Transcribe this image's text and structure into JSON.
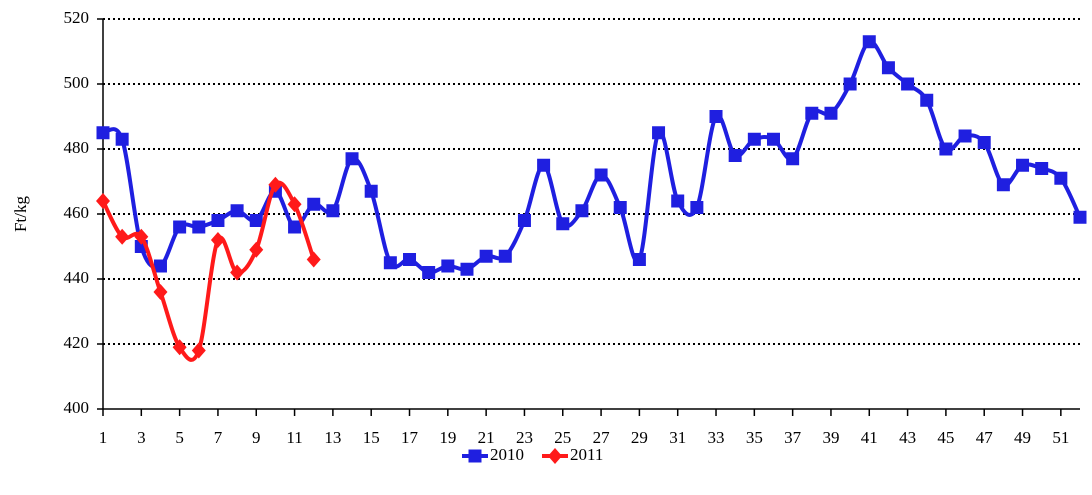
{
  "chart_data": {
    "type": "line",
    "y_label": "Ft/kg",
    "x": [
      1,
      2,
      3,
      4,
      5,
      6,
      7,
      8,
      9,
      10,
      11,
      12,
      13,
      14,
      15,
      16,
      17,
      18,
      19,
      20,
      21,
      22,
      23,
      24,
      25,
      26,
      27,
      28,
      29,
      30,
      31,
      32,
      33,
      34,
      35,
      36,
      37,
      38,
      39,
      40,
      41,
      42,
      43,
      44,
      45,
      46,
      47,
      48,
      49,
      50,
      51,
      52
    ],
    "series": [
      {
        "name": "2010",
        "color": "#1f1fe0",
        "marker": "square",
        "values": [
          485,
          483,
          450,
          444,
          456,
          456,
          458,
          461,
          458,
          467,
          456,
          463,
          461,
          477,
          467,
          445,
          446,
          442,
          444,
          443,
          447,
          447,
          458,
          475,
          457,
          461,
          472,
          462,
          446,
          485,
          464,
          462,
          490,
          478,
          483,
          483,
          477,
          491,
          491,
          500,
          513,
          505,
          500,
          495,
          480,
          484,
          482,
          469,
          475,
          474,
          471,
          459
        ]
      },
      {
        "name": "2011",
        "color": "#ff1a1a",
        "marker": "diamond",
        "values": [
          464,
          453,
          453,
          436,
          419,
          418,
          452,
          442,
          449,
          469,
          463,
          446,
          null,
          null,
          null,
          null,
          null,
          null,
          null,
          null,
          null,
          null,
          null,
          null,
          null,
          null,
          null,
          null,
          null,
          null,
          null,
          null,
          null,
          null,
          null,
          null,
          null,
          null,
          null,
          null,
          null,
          null,
          null,
          null,
          null,
          null,
          null,
          null,
          null,
          null,
          null,
          null
        ]
      }
    ],
    "xlim": [
      1,
      52
    ],
    "xticks": [
      1,
      3,
      5,
      7,
      9,
      11,
      13,
      15,
      17,
      19,
      21,
      23,
      25,
      27,
      29,
      31,
      33,
      35,
      37,
      39,
      41,
      43,
      45,
      47,
      49,
      51
    ],
    "ylim": [
      400,
      520
    ],
    "yticks": [
      400,
      420,
      440,
      460,
      480,
      500,
      520
    ],
    "grid": true,
    "legend": "bottom"
  }
}
